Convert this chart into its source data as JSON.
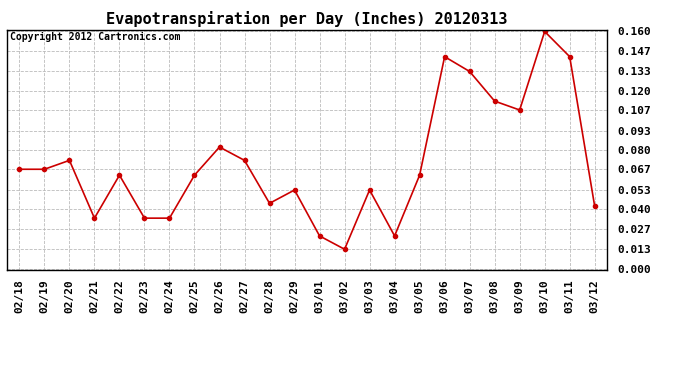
{
  "title": "Evapotranspiration per Day (Inches) 20120313",
  "copyright_text": "Copyright 2012 Cartronics.com",
  "x_labels": [
    "02/18",
    "02/19",
    "02/20",
    "02/21",
    "02/22",
    "02/23",
    "02/24",
    "02/25",
    "02/26",
    "02/27",
    "02/28",
    "02/29",
    "03/01",
    "03/02",
    "03/03",
    "03/04",
    "03/05",
    "03/06",
    "03/07",
    "03/08",
    "03/09",
    "03/10",
    "03/11",
    "03/12"
  ],
  "y_values": [
    0.067,
    0.067,
    0.073,
    0.034,
    0.063,
    0.034,
    0.034,
    0.063,
    0.082,
    0.073,
    0.044,
    0.053,
    0.022,
    0.013,
    0.053,
    0.022,
    0.063,
    0.143,
    0.133,
    0.113,
    0.107,
    0.16,
    0.143,
    0.042
  ],
  "line_color": "#cc0000",
  "marker": "o",
  "marker_size": 3,
  "background_color": "#ffffff",
  "grid_color": "#bbbbbb",
  "y_ticks": [
    0.0,
    0.013,
    0.027,
    0.04,
    0.053,
    0.067,
    0.08,
    0.093,
    0.107,
    0.12,
    0.133,
    0.147,
    0.16
  ],
  "ylim": [
    0.0,
    0.16
  ],
  "title_fontsize": 11,
  "copyright_fontsize": 7,
  "tick_fontsize": 8,
  "figwidth": 6.9,
  "figheight": 3.75,
  "dpi": 100
}
